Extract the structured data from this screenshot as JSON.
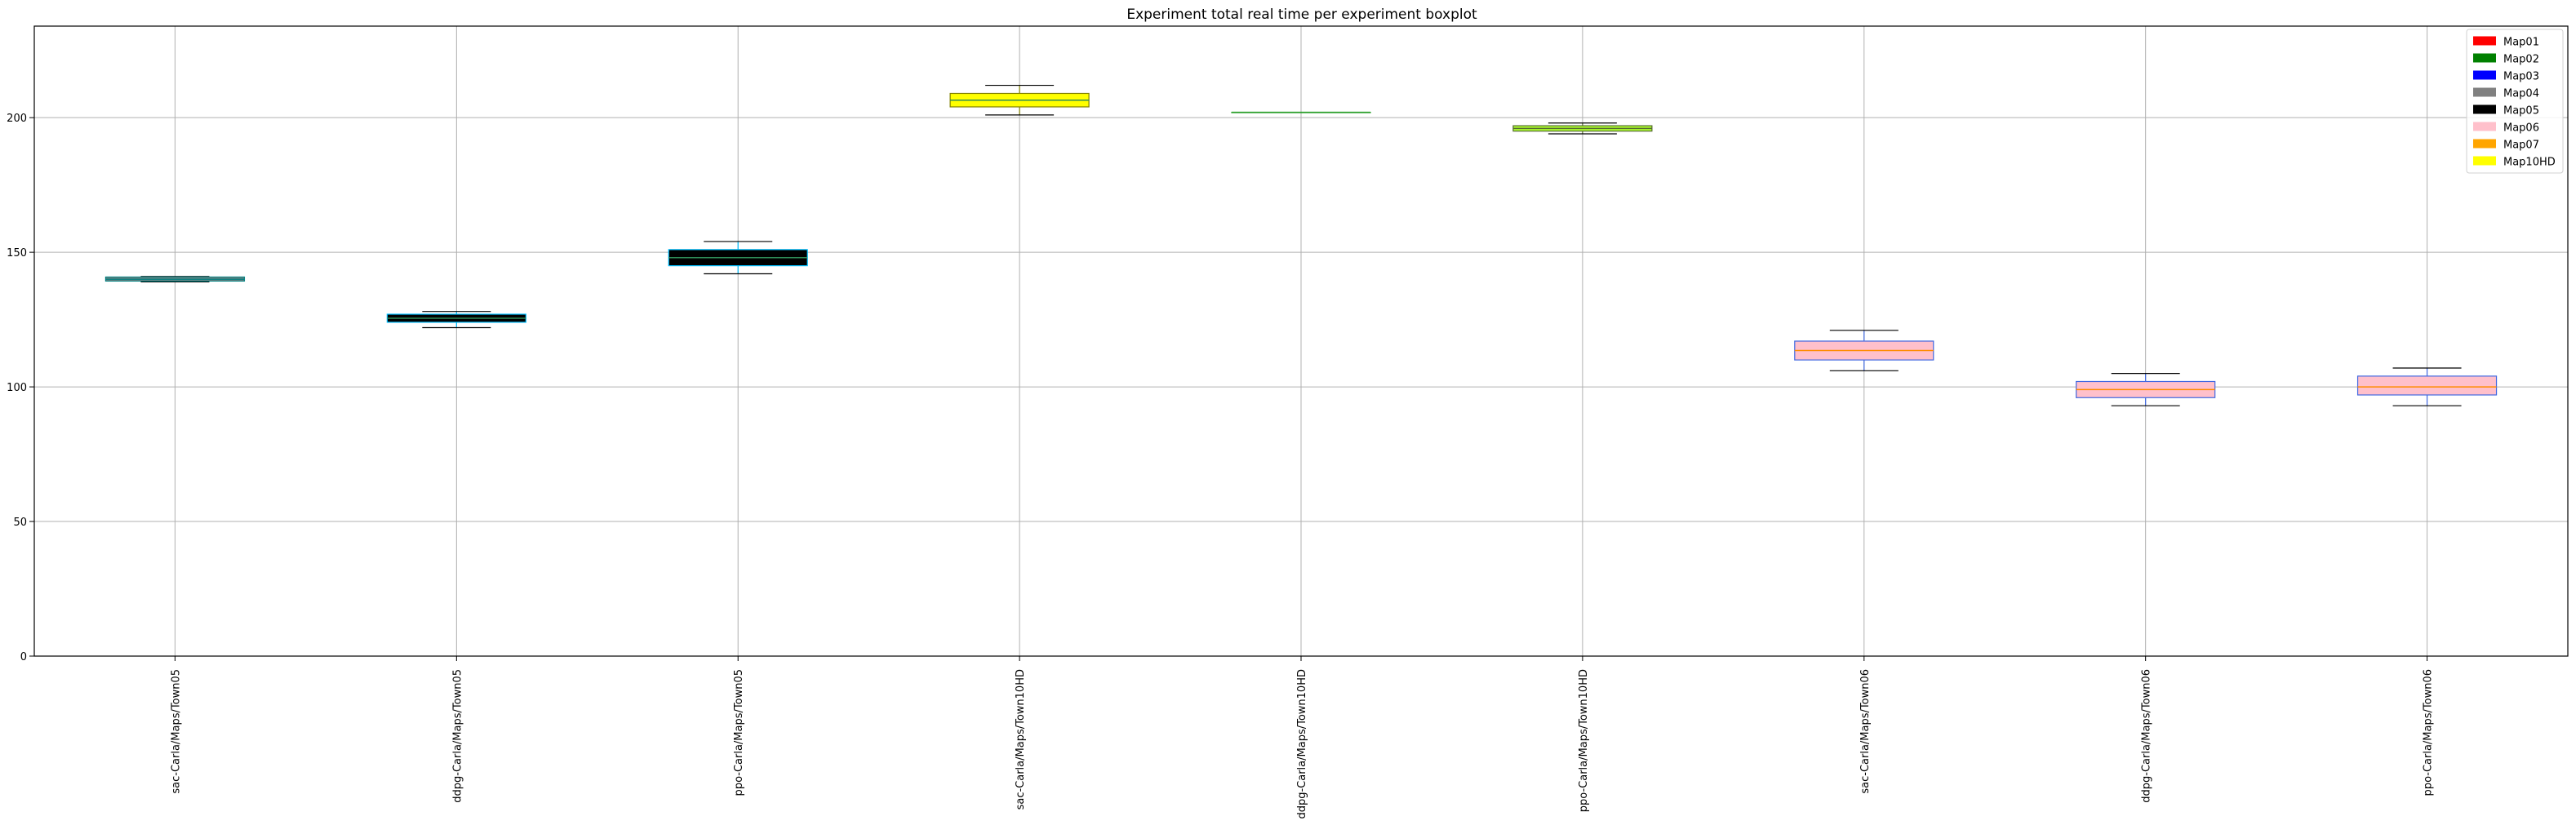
{
  "chart_data": {
    "type": "boxplot",
    "title": "Experiment total real time per experiment boxplot",
    "xlabel": "",
    "ylabel": "",
    "ylim": [
      0,
      234
    ],
    "yticks": [
      0,
      50,
      100,
      150,
      200
    ],
    "grid": true,
    "legend_position": "top-right",
    "legend": [
      {
        "label": "Map01",
        "color": "#ff0000"
      },
      {
        "label": "Map02",
        "color": "#008000"
      },
      {
        "label": "Map03",
        "color": "#0000ff"
      },
      {
        "label": "Map04",
        "color": "#808080"
      },
      {
        "label": "Map05",
        "color": "#000000"
      },
      {
        "label": "Map06",
        "color": "#ffc0cb"
      },
      {
        "label": "Map07",
        "color": "#ffa500"
      },
      {
        "label": "Map10HD",
        "color": "#ffff00"
      }
    ],
    "categories": [
      "sac-Carla/Maps/Town05",
      "ddpg-Carla/Maps/Town05",
      "ppo-Carla/Maps/Town05",
      "sac-Carla/Maps/Town10HD",
      "ddpg-Carla/Maps/Town10HD",
      "ppo-Carla/Maps/Town10HD",
      "sac-Carla/Maps/Town06",
      "ddpg-Carla/Maps/Town06",
      "ppo-Carla/Maps/Town06"
    ],
    "boxes": [
      {
        "whisker_low": 139,
        "q1": 139.3,
        "median": 140,
        "q3": 140.8,
        "whisker_high": 141,
        "fill": "#808080",
        "edge": "#008080",
        "median_color": "#008080"
      },
      {
        "whisker_low": 122,
        "q1": 124,
        "median": 125.5,
        "q3": 127,
        "whisker_high": 128,
        "fill": "#000000",
        "edge": "#00bfff",
        "median_color": "#2e8b57"
      },
      {
        "whisker_low": 142,
        "q1": 145,
        "median": 148,
        "q3": 151,
        "whisker_high": 154,
        "fill": "#000000",
        "edge": "#00bfff",
        "median_color": "#2e8b57"
      },
      {
        "whisker_low": 201,
        "q1": 204,
        "median": 206.5,
        "q3": 209,
        "whisker_high": 212,
        "fill": "#ffff00",
        "edge": "#808000",
        "median_color": "#2e8b57"
      },
      {
        "whisker_low": 202,
        "q1": 202,
        "median": 202,
        "q3": 202,
        "whisker_high": 202,
        "fill": "#ffff00",
        "edge": "#2ca02c",
        "median_color": "#2ca02c"
      },
      {
        "whisker_low": 194,
        "q1": 195,
        "median": 196,
        "q3": 197,
        "whisker_high": 198,
        "fill": "#adff2f",
        "edge": "#556b2f",
        "median_color": "#556b2f"
      },
      {
        "whisker_low": 106,
        "q1": 110,
        "median": 113.5,
        "q3": 117,
        "whisker_high": 121,
        "fill": "#ffc0cb",
        "edge": "#4169e1",
        "median_color": "#ff8c00"
      },
      {
        "whisker_low": 93,
        "q1": 96,
        "median": 99,
        "q3": 102,
        "whisker_high": 105,
        "fill": "#ffc0cb",
        "edge": "#4169e1",
        "median_color": "#ff8c00"
      },
      {
        "whisker_low": 93,
        "q1": 97,
        "median": 100,
        "q3": 104,
        "whisker_high": 107,
        "fill": "#ffc0cb",
        "edge": "#4169e1",
        "median_color": "#ff8c00"
      }
    ]
  }
}
